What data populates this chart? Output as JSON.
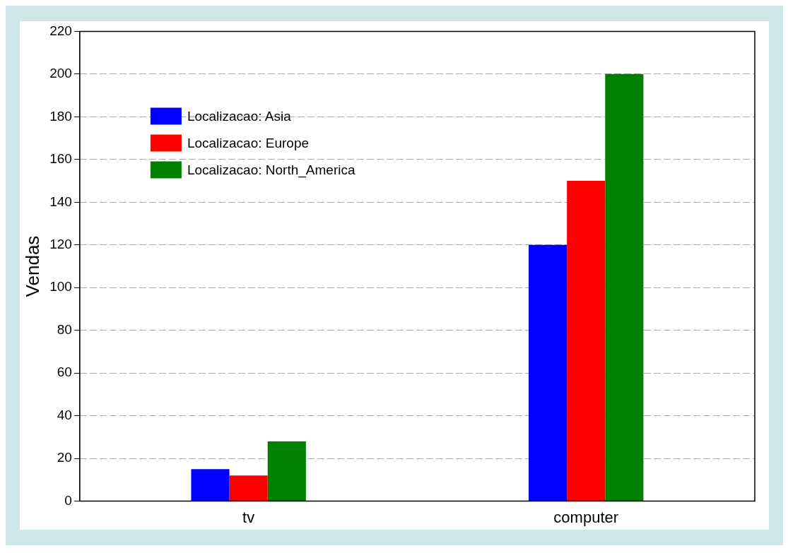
{
  "chart_data": {
    "type": "bar",
    "ylabel": "Vendas",
    "categories": [
      "tv",
      "computer"
    ],
    "series": [
      {
        "name": "Localizacao: Asia",
        "color": "#0000ff",
        "values": [
          15,
          120
        ]
      },
      {
        "name": "Localizacao: Europe",
        "color": "#ff0000",
        "values": [
          12,
          150
        ]
      },
      {
        "name": "Localizacao: North_America",
        "color": "#008000",
        "values": [
          28,
          200
        ]
      }
    ],
    "ylim": [
      0,
      220
    ],
    "yticks": [
      0,
      20,
      40,
      60,
      80,
      100,
      120,
      140,
      160,
      180,
      200,
      220
    ],
    "grid": "y",
    "legend": "top left"
  }
}
